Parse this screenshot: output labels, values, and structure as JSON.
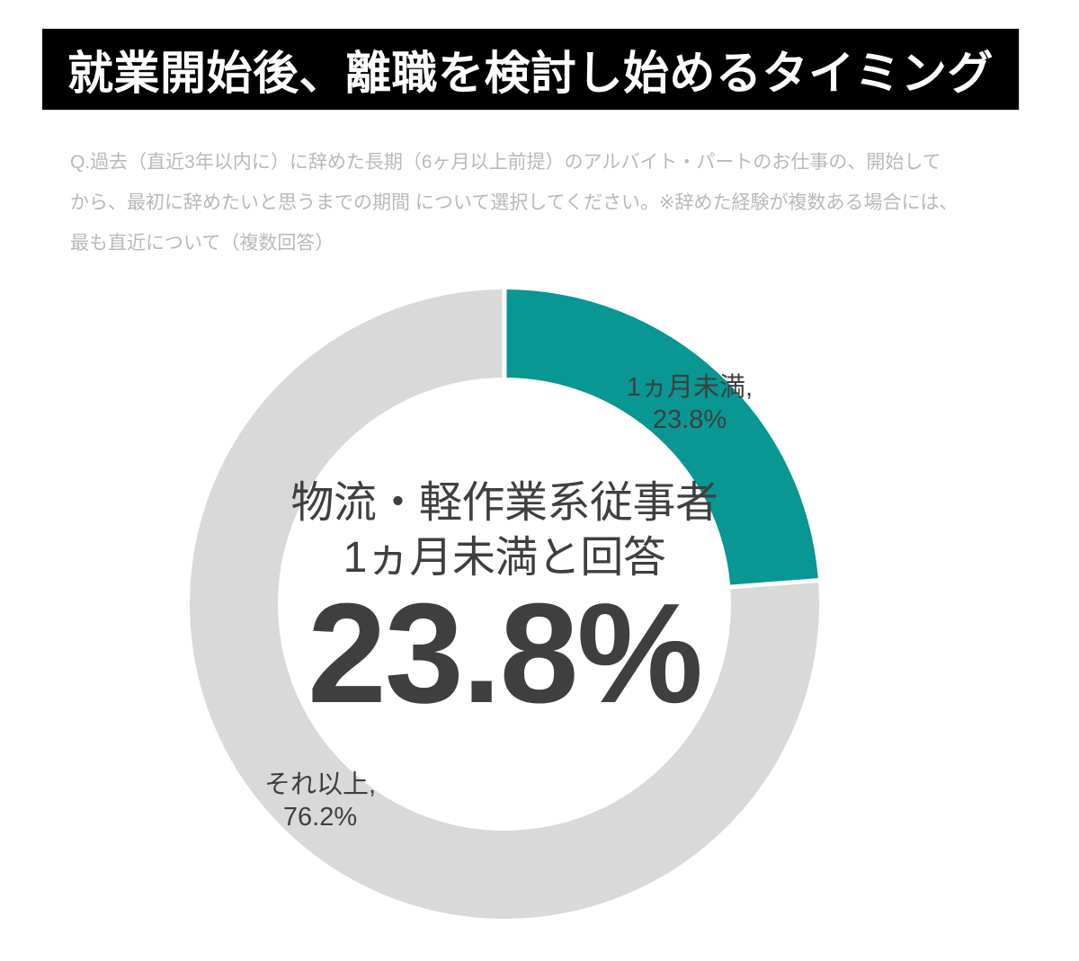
{
  "header": {
    "title": "就業開始後、離職を検討し始めるタイミング"
  },
  "question": {
    "lines": [
      "Q.過去（直近3年以内に）に辞めた長期（6ヶ月以上前提）のアルバイト・パートのお仕事の、開始して",
      "から、最初に辞めたいと思うまでの期間 について選択してください。※辞めた経験が複数ある場合には、",
      "最も直近について（複数回答）"
    ]
  },
  "chart_data": {
    "type": "pie",
    "subtype": "donut",
    "title": "就業開始後、離職を検討し始めるタイミング",
    "categories": [
      "1ヵ月未満",
      "それ以上"
    ],
    "values": [
      23.8,
      76.2
    ],
    "unit": "%",
    "colors": [
      "#089792",
      "#d9d9d9"
    ],
    "start_angle_deg": 0,
    "clockwise": true,
    "donut_hole_ratio": 0.72,
    "separator_color": "#ffffff",
    "legend": "none",
    "grid": false,
    "slice_labels": [
      {
        "line1": "1ヵ月未満,",
        "line2": "23.8%"
      },
      {
        "line1": "それ以上,",
        "line2": "76.2%"
      }
    ],
    "center_text": {
      "line1": "物流・軽作業系従事者",
      "line2": "1ヵ月未満と回答",
      "value": "23.8%"
    }
  },
  "colors": {
    "banner_bg": "#000000",
    "banner_text": "#ffffff",
    "question_gray": "#b9b9b9",
    "text_dark": "#3f3f3f",
    "accent_teal": "#089792",
    "segment_gray": "#d9d9d9"
  }
}
